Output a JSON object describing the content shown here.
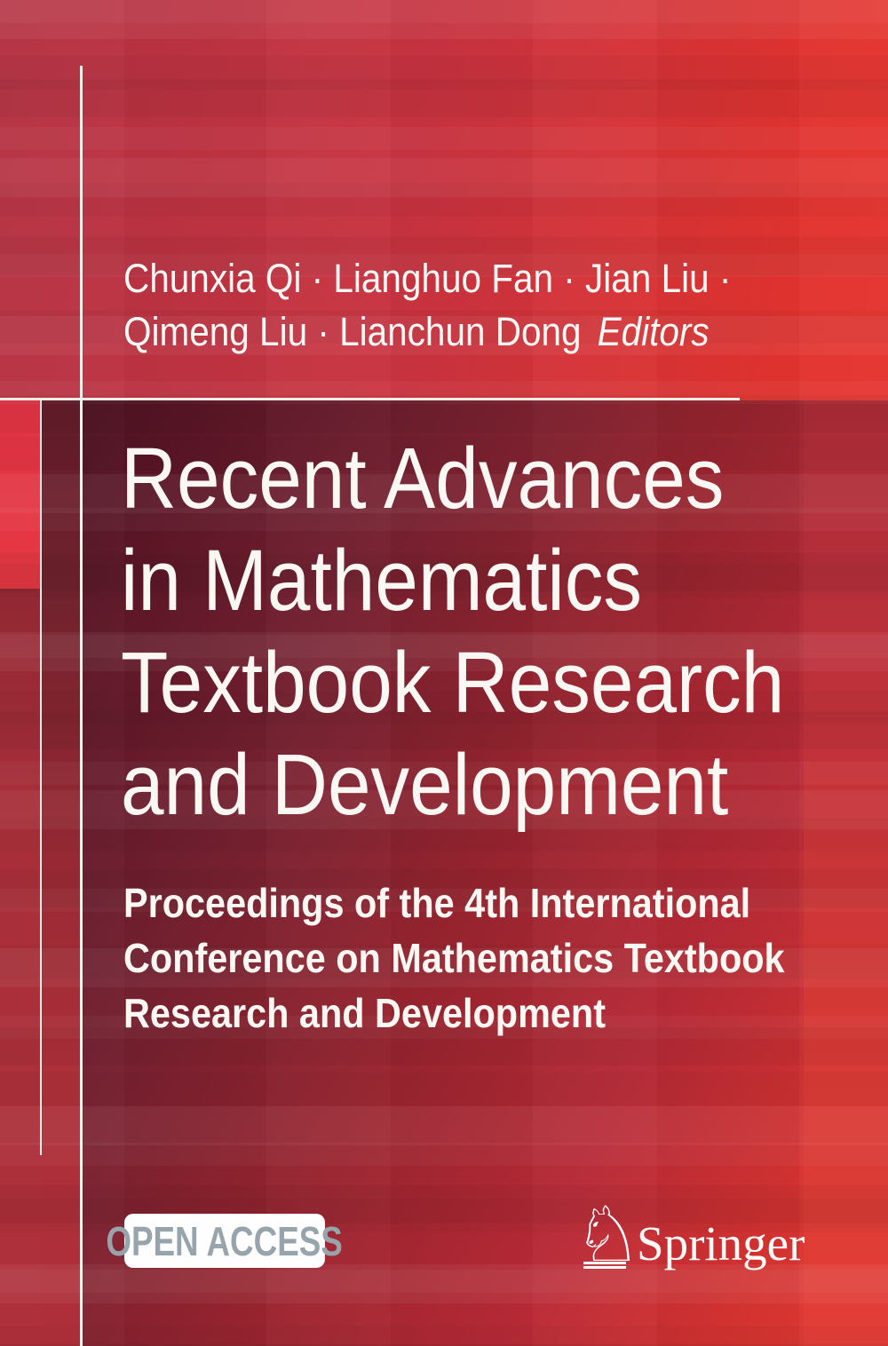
{
  "cover": {
    "authors": {
      "line1": "Chunxia Qi · Lianghuo Fan · Jian Liu ·",
      "line2": "Qimeng Liu · Lianchun Dong",
      "editors_label": "Editors"
    },
    "title_lines": [
      "Recent Advances",
      "in Mathematics",
      "Textbook Research",
      "and Development"
    ],
    "subtitle_lines": [
      "Proceedings of the 4th International",
      "Conference on Mathematics Textbook",
      "Research and Development"
    ],
    "open_access_badge": "OPEN ACCESS",
    "publisher": {
      "name": "Springer",
      "knight_glyph": "♘"
    },
    "colors": {
      "top_red_left": "#b43243",
      "top_red_right": "#ea342e",
      "title_band_dark": "#451021",
      "title_band_light": "#e63b33",
      "bright_strip": "#e1303f",
      "rule_white": "#f6ece4",
      "badge_background": "#fefefe",
      "badge_text_gray": "#98a4ac",
      "text_white": "#fbf7f3"
    }
  }
}
